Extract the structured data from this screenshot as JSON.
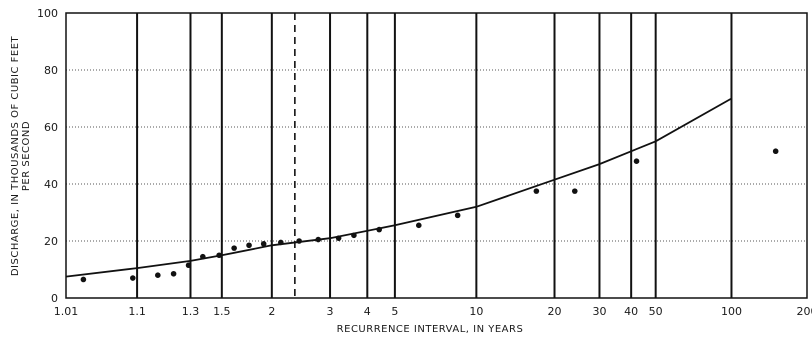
{
  "chart_data": {
    "type": "scatter",
    "title": "",
    "xlabel": "RECURRENCE INTERVAL, IN YEARS",
    "ylabel_lines": [
      "DISCHARGE, IN THOUSANDS OF CUBIC FEET",
      "PER SECOND"
    ],
    "x_scale": "probability (Gumbel)",
    "xlim": [
      1.01,
      200
    ],
    "ylim": [
      0,
      100
    ],
    "y_ticks": [
      0,
      20,
      40,
      60,
      80,
      100
    ],
    "x_ticks": [
      {
        "value": 1.01,
        "label": "1.01"
      },
      {
        "value": 1.1,
        "label": "1.1"
      },
      {
        "value": 1.3,
        "label": "1.3"
      },
      {
        "value": 1.5,
        "label": "1.5"
      },
      {
        "value": 2,
        "label": "2"
      },
      {
        "value": 3,
        "label": "3"
      },
      {
        "value": 4,
        "label": "4"
      },
      {
        "value": 5,
        "label": "5"
      },
      {
        "value": 10,
        "label": "10"
      },
      {
        "value": 20,
        "label": "20"
      },
      {
        "value": 30,
        "label": "30"
      },
      {
        "value": 40,
        "label": "40"
      },
      {
        "value": 50,
        "label": "50"
      },
      {
        "value": 100,
        "label": "100"
      },
      {
        "value": 200,
        "label": "200"
      }
    ],
    "grid_x": [
      1.1,
      1.3,
      1.5,
      2,
      3,
      4,
      5,
      10,
      20,
      30,
      40,
      50,
      100
    ],
    "reference_line_x": 2.33,
    "grid_y": true,
    "series": [
      {
        "type": "scatter",
        "points": [
          {
            "x": 1.02,
            "y": 6.5
          },
          {
            "x": 1.09,
            "y": 7
          },
          {
            "x": 1.16,
            "y": 8
          },
          {
            "x": 1.22,
            "y": 8.5
          },
          {
            "x": 1.29,
            "y": 11.5
          },
          {
            "x": 1.37,
            "y": 14.5
          },
          {
            "x": 1.48,
            "y": 15
          },
          {
            "x": 1.6,
            "y": 17.5
          },
          {
            "x": 1.74,
            "y": 18.5
          },
          {
            "x": 1.9,
            "y": 19
          },
          {
            "x": 2.12,
            "y": 19.5
          },
          {
            "x": 2.4,
            "y": 20
          },
          {
            "x": 2.75,
            "y": 20.5
          },
          {
            "x": 3.2,
            "y": 21
          },
          {
            "x": 3.6,
            "y": 22
          },
          {
            "x": 4.4,
            "y": 24
          },
          {
            "x": 6.1,
            "y": 25.5
          },
          {
            "x": 8.5,
            "y": 29
          },
          {
            "x": 17,
            "y": 37.5
          },
          {
            "x": 24,
            "y": 37.5
          },
          {
            "x": 42,
            "y": 48
          },
          {
            "x": 150,
            "y": 51.5
          }
        ]
      },
      {
        "type": "line",
        "points": [
          {
            "x": 1.01,
            "y": 7.5
          },
          {
            "x": 1.1,
            "y": 10.5
          },
          {
            "x": 1.3,
            "y": 13
          },
          {
            "x": 1.5,
            "y": 15
          },
          {
            "x": 2,
            "y": 18.5
          },
          {
            "x": 3,
            "y": 21
          },
          {
            "x": 5,
            "y": 25.5
          },
          {
            "x": 10,
            "y": 32
          },
          {
            "x": 20,
            "y": 41.5
          },
          {
            "x": 30,
            "y": 47
          },
          {
            "x": 50,
            "y": 55
          },
          {
            "x": 100,
            "y": 70
          }
        ]
      }
    ]
  }
}
